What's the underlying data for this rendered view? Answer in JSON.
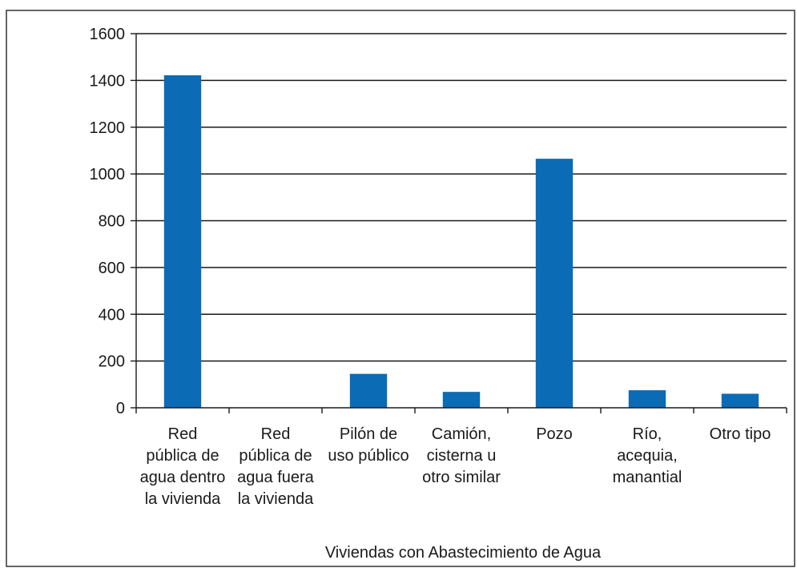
{
  "chart_data": {
    "type": "bar",
    "categories": [
      [
        "Red",
        "pública de",
        "agua dentro",
        "la vivienda"
      ],
      [
        "Red",
        "pública de",
        "agua fuera",
        "la vivienda"
      ],
      [
        "Pilón de",
        "uso público"
      ],
      [
        "Camión,",
        "cisterna u",
        "otro similar"
      ],
      [
        "Pozo"
      ],
      [
        "Río,",
        "acequia,",
        "manantial"
      ],
      [
        "Otro tipo"
      ]
    ],
    "values": [
      1422,
      0,
      145,
      68,
      1065,
      75,
      60
    ],
    "xlabel": "Viviendas con Abastecimiento de Agua",
    "ylabel": "",
    "title": "",
    "ylim": [
      0,
      1600
    ],
    "yticks": [
      0,
      200,
      400,
      600,
      800,
      1000,
      1200,
      1400,
      1600
    ],
    "grid": true,
    "colors": {
      "bar": "#0b6bb5",
      "grid": "#1a1a1a",
      "frame": "#333333"
    }
  }
}
